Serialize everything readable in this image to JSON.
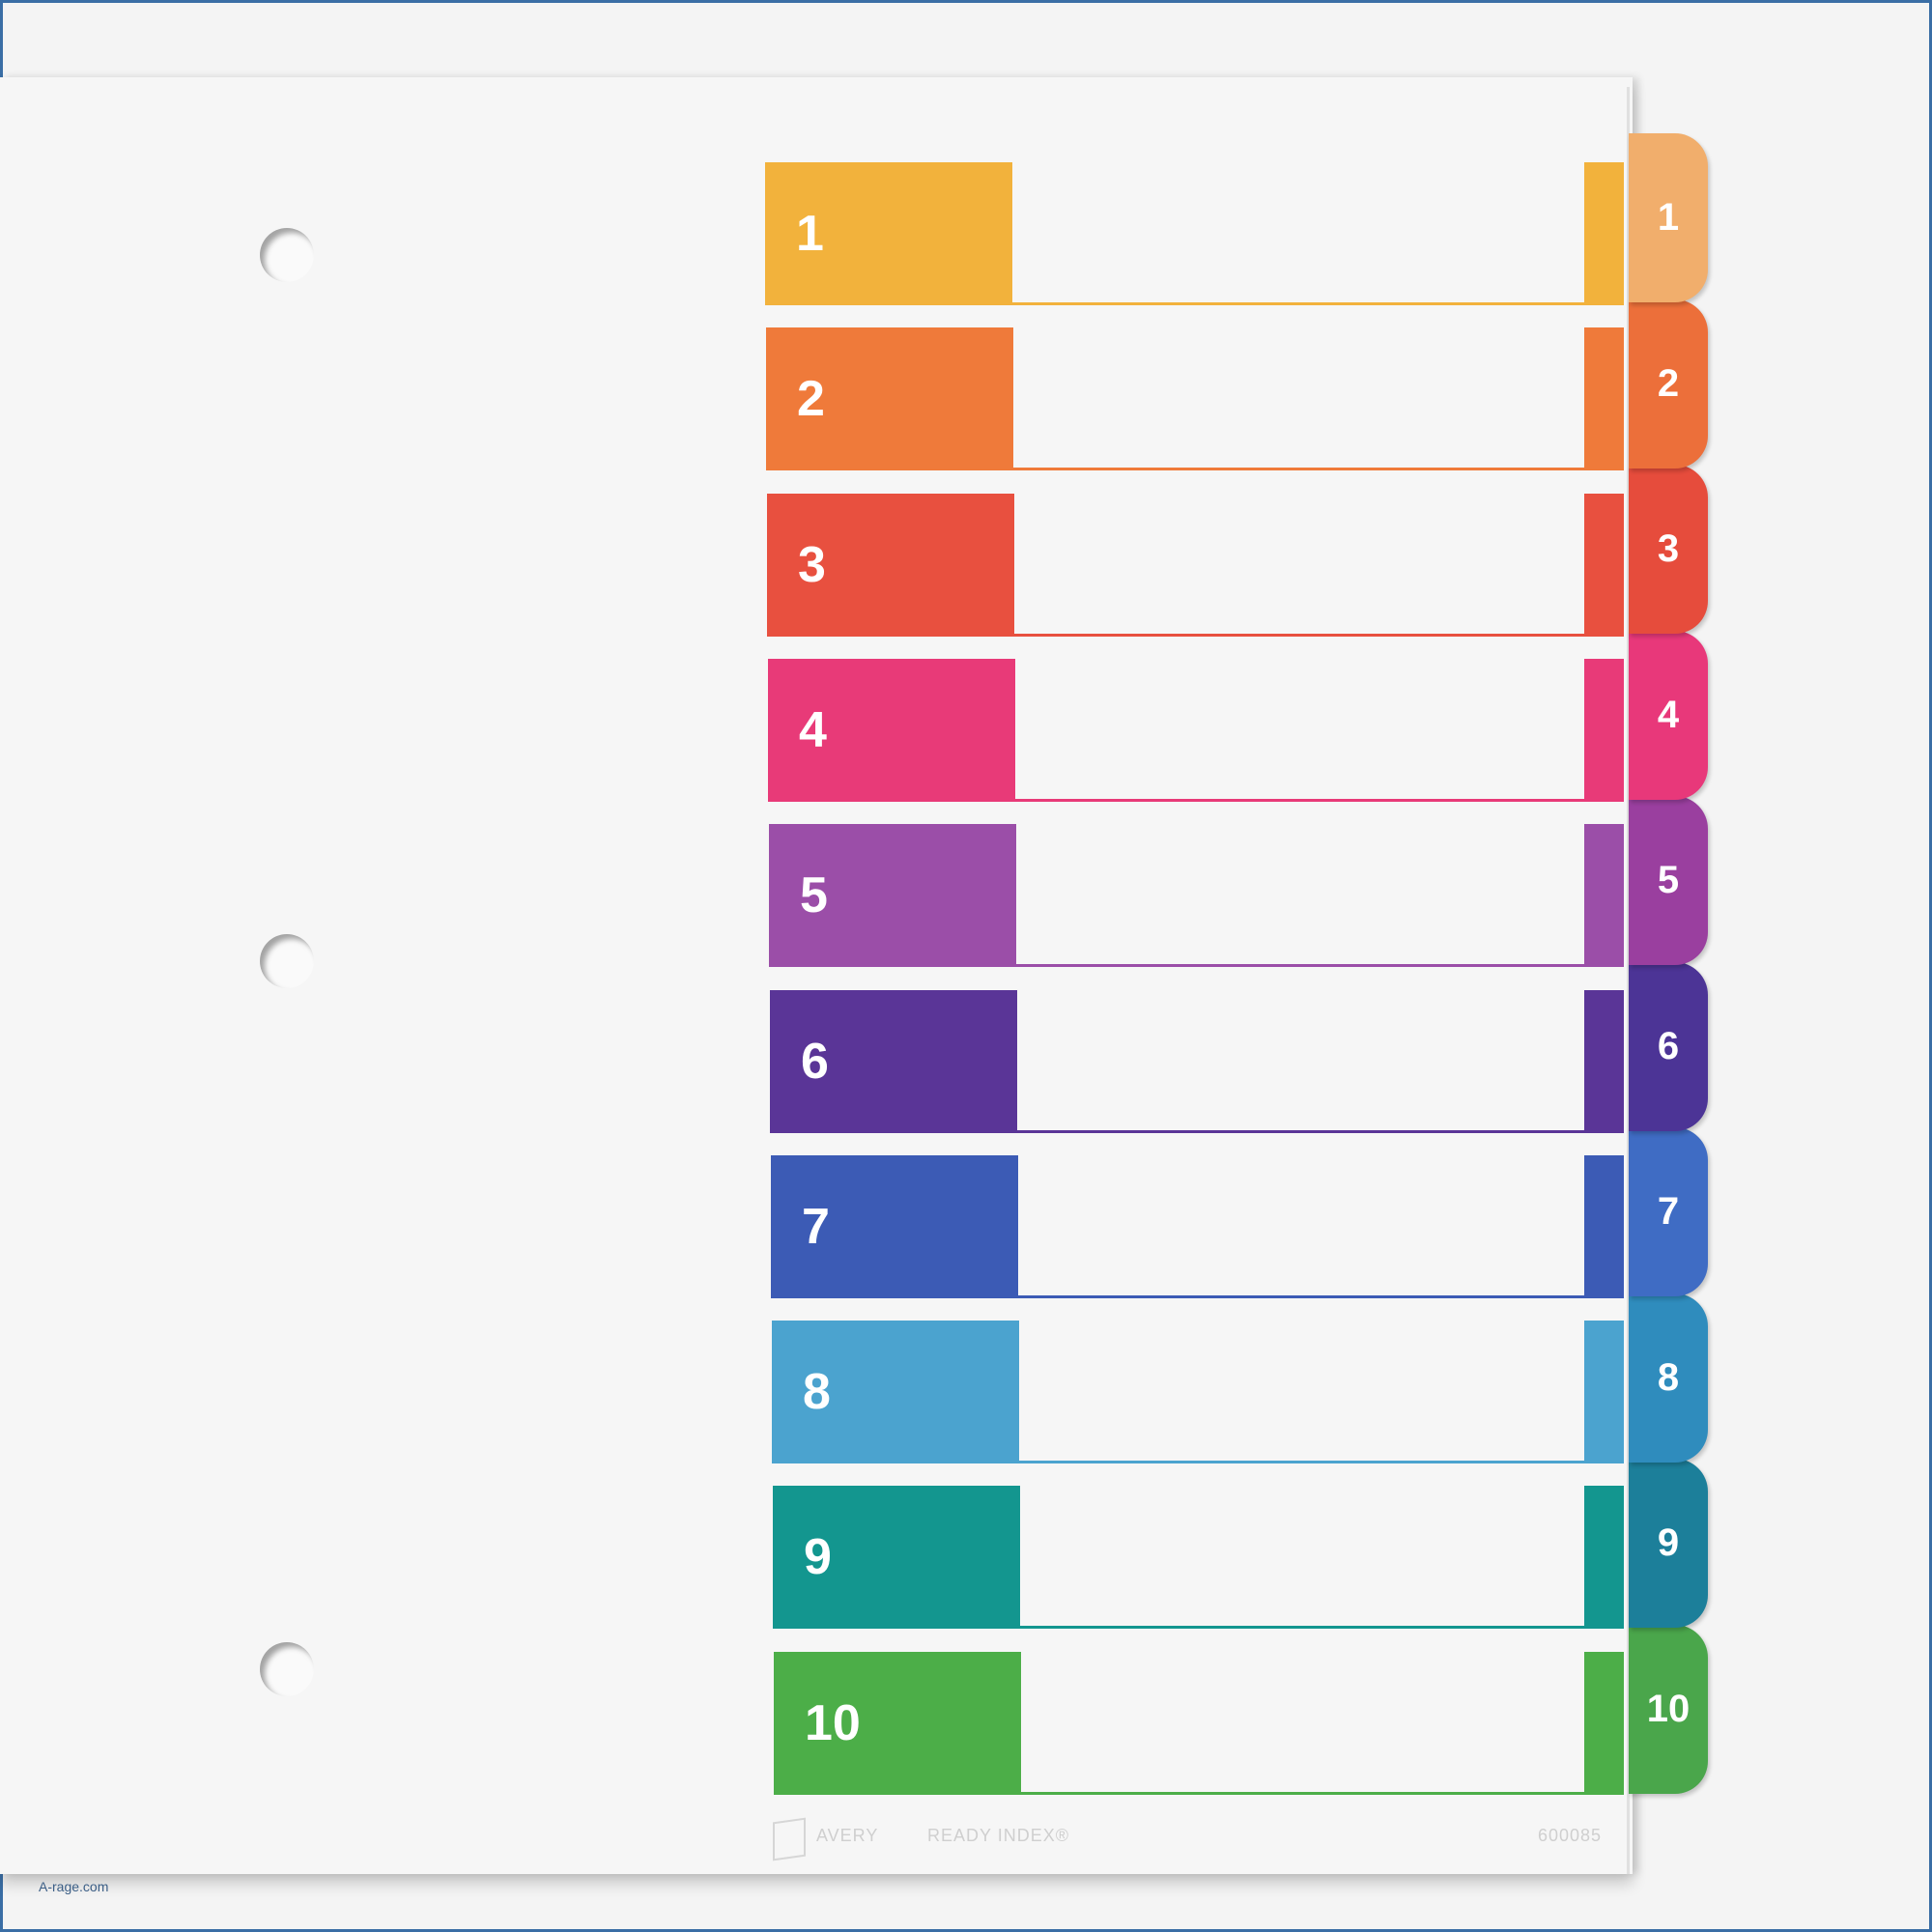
{
  "tabs": [
    {
      "label": "1",
      "color": "#f2b23c",
      "tab_color": "#f1ae6c"
    },
    {
      "label": "2",
      "color": "#ef7a3a",
      "tab_color": "#ec6f3a"
    },
    {
      "label": "3",
      "color": "#e8503f",
      "tab_color": "#e64c3c"
    },
    {
      "label": "4",
      "color": "#e83a78",
      "tab_color": "#e8387a"
    },
    {
      "label": "5",
      "color": "#9b4ea8",
      "tab_color": "#9a3f9f"
    },
    {
      "label": "6",
      "color": "#5a3597",
      "tab_color": "#4c3496"
    },
    {
      "label": "7",
      "color": "#3c5bb5",
      "tab_color": "#3f6cc4"
    },
    {
      "label": "8",
      "color": "#4ba3cf",
      "tab_color": "#2f8cbd"
    },
    {
      "label": "9",
      "color": "#13968f",
      "tab_color": "#1c7f9a"
    },
    {
      "label": "10",
      "color": "#4cae48",
      "tab_color": "#4aa64b"
    }
  ],
  "footer": {
    "brand": "AVERY",
    "product": "READY INDEX®",
    "code": "600085"
  },
  "watermark": "A-rage.com"
}
